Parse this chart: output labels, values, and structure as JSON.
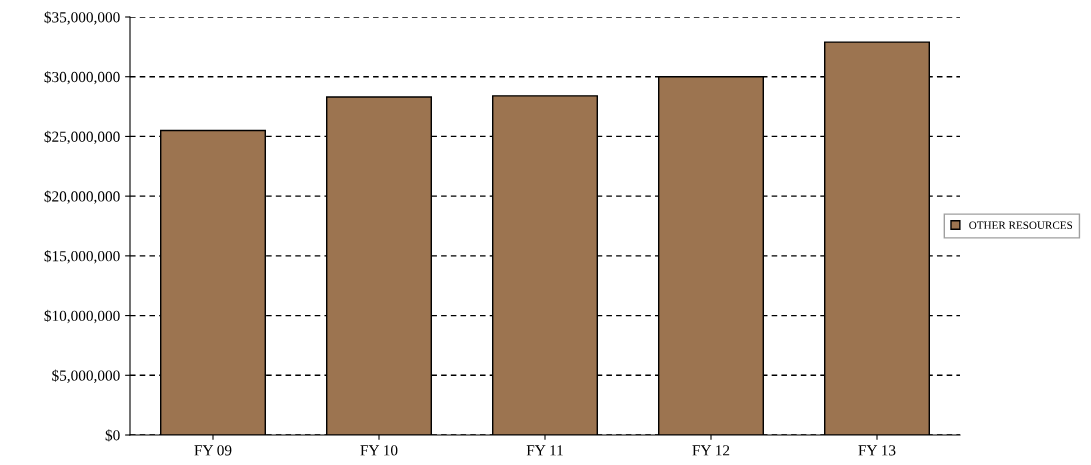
{
  "chart_data": {
    "type": "bar",
    "categories": [
      "FY 09",
      "FY 10",
      "FY 11",
      "FY 12",
      "FY 13"
    ],
    "series": [
      {
        "name": "OTHER RESOURCES",
        "color": "#9c7450",
        "values": [
          25500000,
          28300000,
          28400000,
          30000000,
          32900000
        ]
      }
    ],
    "ylim": [
      0,
      35000000
    ],
    "yticks": [
      {
        "value": 0,
        "label": "$0"
      },
      {
        "value": 5000000,
        "label": "$5,000,000"
      },
      {
        "value": 10000000,
        "label": "$10,000,000"
      },
      {
        "value": 15000000,
        "label": "$15,000,000"
      },
      {
        "value": 20000000,
        "label": "$20,000,000"
      },
      {
        "value": 25000000,
        "label": "$25,000,000"
      },
      {
        "value": 30000000,
        "label": "$30,000,000"
      },
      {
        "value": 35000000,
        "label": "$35,000,000"
      }
    ],
    "grid": "y",
    "legend": "right"
  }
}
